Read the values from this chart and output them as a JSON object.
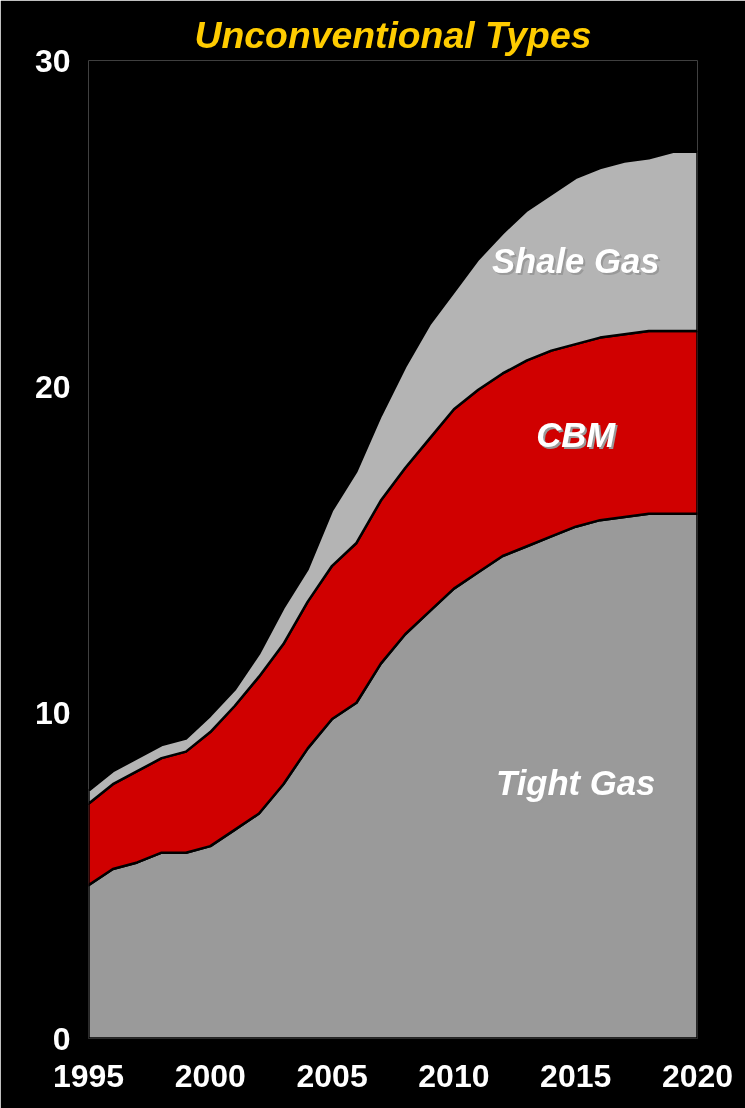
{
  "chart_data": {
    "type": "area",
    "title": "Unconventional Types",
    "stacked": true,
    "x": [
      1995,
      1996,
      1997,
      1998,
      1999,
      2000,
      2001,
      2002,
      2003,
      2004,
      2005,
      2006,
      2007,
      2008,
      2009,
      2010,
      2011,
      2012,
      2013,
      2014,
      2015,
      2016,
      2017,
      2018,
      2019,
      2020
    ],
    "xlim": [
      1995,
      2020
    ],
    "xticks": [
      1995,
      2000,
      2005,
      2010,
      2015,
      2020
    ],
    "ylim": [
      0,
      30
    ],
    "yticks": [
      0,
      10,
      20,
      30
    ],
    "series": [
      {
        "name": "Tight Gas",
        "color": "#9a9a9a",
        "values": [
          4.7,
          5.2,
          5.4,
          5.7,
          5.7,
          5.9,
          6.4,
          6.9,
          7.8,
          8.9,
          9.8,
          10.3,
          11.5,
          12.4,
          13.1,
          13.8,
          14.3,
          14.8,
          15.1,
          15.4,
          15.7,
          15.9,
          16.0,
          16.1,
          16.1,
          16.1
        ]
      },
      {
        "name": "CBM",
        "color": "#d00000",
        "values": [
          2.5,
          2.6,
          2.8,
          2.9,
          3.1,
          3.5,
          3.8,
          4.2,
          4.3,
          4.5,
          4.7,
          4.9,
          5.0,
          5.1,
          5.3,
          5.5,
          5.6,
          5.6,
          5.7,
          5.7,
          5.6,
          5.6,
          5.6,
          5.6,
          5.6,
          5.6
        ]
      },
      {
        "name": "Shale Gas",
        "color": "#b4b4b4",
        "values": [
          0.4,
          0.4,
          0.4,
          0.4,
          0.4,
          0.5,
          0.5,
          0.7,
          1.1,
          1.0,
          1.7,
          2.2,
          2.6,
          3.1,
          3.5,
          3.6,
          4.0,
          4.3,
          4.6,
          4.8,
          5.1,
          5.2,
          5.3,
          5.3,
          5.5,
          5.5
        ]
      }
    ]
  }
}
